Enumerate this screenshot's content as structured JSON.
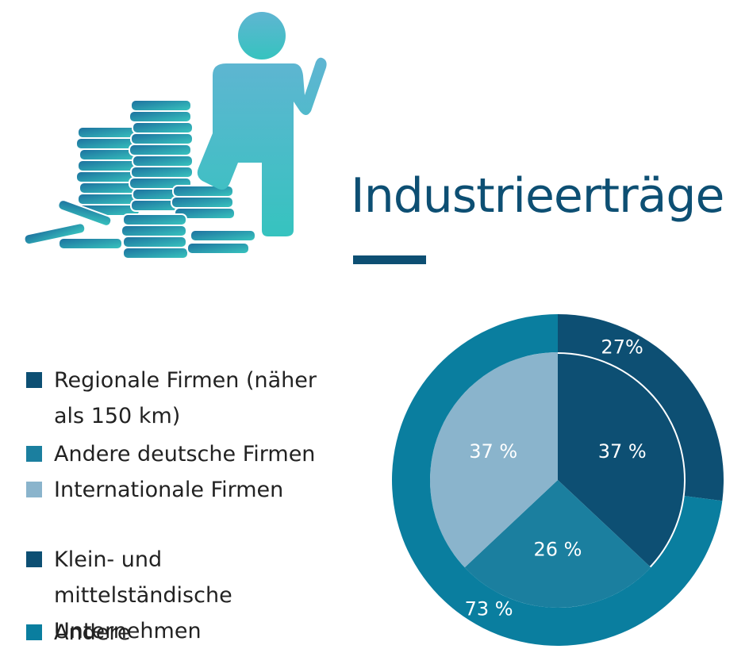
{
  "chart_data": [
    {
      "type": "pie",
      "title": "Industrieerträge",
      "categories": [
        "Regionale Firmen (näher als 150 km)",
        "Andere deutsche Firmen",
        "Internationale Firmen"
      ],
      "values": [
        37,
        26,
        37
      ],
      "value_labels": [
        "37 %",
        "26 %",
        "37 %"
      ],
      "colors": [
        "#0d4f73",
        "#1b7f9f",
        "#8ab4cc"
      ]
    },
    {
      "type": "donut",
      "categories": [
        "Klein- und mittelständische Unternehmen",
        "Andere"
      ],
      "values": [
        27,
        73
      ],
      "value_labels": [
        "27%",
        "73 %"
      ],
      "colors": [
        "#0d4f73",
        "#0a7e9f"
      ]
    }
  ]
}
